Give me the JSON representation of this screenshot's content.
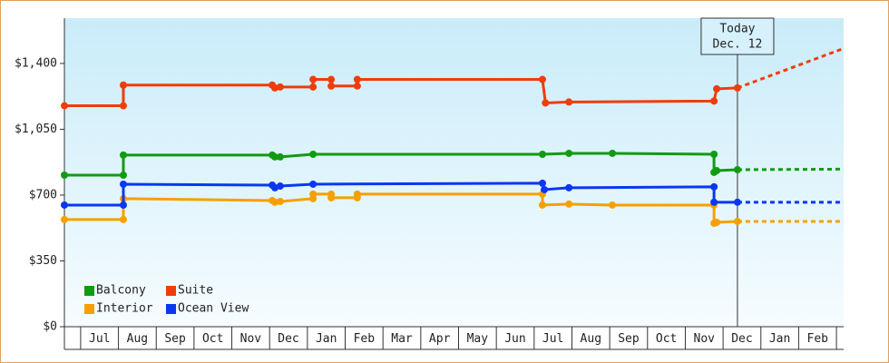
{
  "chart_data": {
    "type": "line",
    "xlim": [
      -0.43,
      20.19
    ],
    "xticks": [
      {
        "value": 0.5,
        "label": "Jul"
      },
      {
        "value": 1.5,
        "label": "Aug"
      },
      {
        "value": 2.5,
        "label": "Sep"
      },
      {
        "value": 3.5,
        "label": "Oct"
      },
      {
        "value": 4.5,
        "label": "Nov"
      },
      {
        "value": 5.5,
        "label": "Dec"
      },
      {
        "value": 6.5,
        "label": "Jan"
      },
      {
        "value": 7.5,
        "label": "Feb"
      },
      {
        "value": 8.5,
        "label": "Mar"
      },
      {
        "value": 9.5,
        "label": "Apr"
      },
      {
        "value": 10.5,
        "label": "May"
      },
      {
        "value": 11.5,
        "label": "Jun"
      },
      {
        "value": 12.5,
        "label": "Jul"
      },
      {
        "value": 13.5,
        "label": "Aug"
      },
      {
        "value": 14.5,
        "label": "Sep"
      },
      {
        "value": 15.5,
        "label": "Oct"
      },
      {
        "value": 16.5,
        "label": "Nov"
      },
      {
        "value": 17.5,
        "label": "Dec"
      },
      {
        "value": 18.5,
        "label": "Jan"
      },
      {
        "value": 19.5,
        "label": "Feb"
      }
    ],
    "ylim": [
      0,
      1641
    ],
    "yticks": [
      {
        "value": 0,
        "label": "$0"
      },
      {
        "value": 350,
        "label": "$350"
      },
      {
        "value": 700,
        "label": "$700"
      },
      {
        "value": 1050,
        "label": "$1,050"
      },
      {
        "value": 1400,
        "label": "$1,400"
      }
    ],
    "today": {
      "x": 17.38,
      "text": [
        "Today",
        "Dec. 12"
      ]
    },
    "legend": "bottom-left",
    "series": [
      {
        "name": "Balcony",
        "color": "#139a13",
        "x": [
          -0.43,
          1.13,
          1.13,
          5.07,
          5.14,
          5.28,
          6.15,
          12.22,
          12.92,
          14.07,
          16.76,
          16.76,
          16.83,
          17.38
        ],
        "values": [
          806,
          806,
          913,
          913,
          903,
          903,
          917,
          917,
          922,
          922,
          917,
          821,
          830,
          835
        ],
        "forecast_x": [
          17.38,
          20.19
        ],
        "forecast_values": [
          835,
          838
        ]
      },
      {
        "name": "Suite",
        "color": "#f03c0a",
        "x": [
          -0.43,
          1.13,
          1.13,
          5.07,
          5.14,
          5.28,
          6.15,
          6.15,
          6.63,
          6.63,
          7.32,
          7.32,
          12.22,
          12.3,
          12.92,
          16.76,
          16.83,
          17.38
        ],
        "values": [
          1175,
          1175,
          1285,
          1285,
          1270,
          1275,
          1275,
          1315,
          1315,
          1280,
          1280,
          1315,
          1315,
          1190,
          1195,
          1200,
          1265,
          1270
        ],
        "forecast_x": [
          17.38,
          20.19
        ],
        "forecast_values": [
          1270,
          1480
        ]
      },
      {
        "name": "Interior",
        "color": "#f5a000",
        "x": [
          -0.43,
          1.13,
          1.13,
          5.07,
          5.14,
          5.28,
          6.15,
          6.15,
          6.63,
          6.63,
          7.32,
          7.32,
          12.22,
          12.22,
          12.92,
          14.07,
          16.76,
          16.76,
          16.83,
          17.38
        ],
        "values": [
          570,
          570,
          681,
          671,
          662,
          666,
          681,
          705,
          705,
          686,
          686,
          705,
          705,
          647,
          652,
          647,
          647,
          550,
          555,
          560
        ],
        "forecast_x": [
          17.38,
          20.19
        ],
        "forecast_values": [
          560,
          560
        ]
      },
      {
        "name": "Ocean View",
        "color": "#0a37f0",
        "x": [
          -0.43,
          1.13,
          1.13,
          5.07,
          5.14,
          5.28,
          6.15,
          12.22,
          12.27,
          12.92,
          16.76,
          16.76,
          17.38
        ],
        "values": [
          647,
          647,
          758,
          753,
          739,
          748,
          758,
          763,
          729,
          739,
          744,
          662,
          662
        ],
        "forecast_x": [
          17.38,
          20.19
        ],
        "forecast_values": [
          662,
          662
        ]
      }
    ]
  }
}
